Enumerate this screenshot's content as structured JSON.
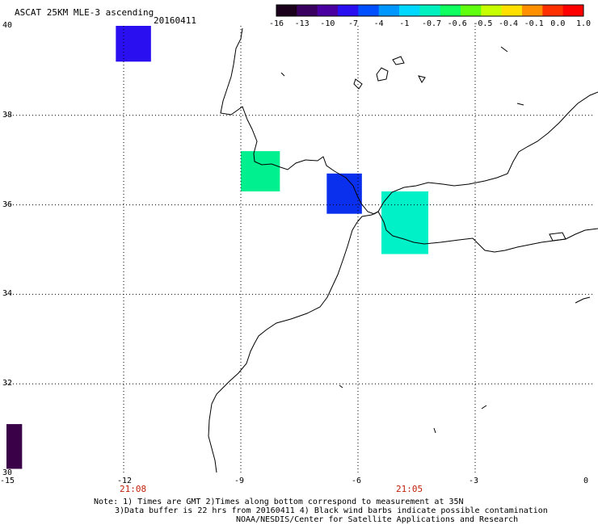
{
  "header": {
    "title": "ASCAT 25KM MLE-3 ascending",
    "date": "20160411"
  },
  "colorbar": {
    "labels": [
      "-16",
      "-13",
      "-10",
      "-7",
      "-4",
      "-1",
      "-0.7",
      "-0.6",
      "-0.5",
      "-0.4",
      "-0.1",
      "0.0",
      "1.0"
    ],
    "colors": [
      "#1a001a",
      "#3a0060",
      "#4a00a0",
      "#2a10f0",
      "#0050ff",
      "#0098ff",
      "#00d8ff",
      "#00f0c0",
      "#10ff60",
      "#60ff10",
      "#c8ff00",
      "#ffe000",
      "#ff9000",
      "#ff3000",
      "#ff0000"
    ]
  },
  "axes": {
    "lat_labels": [
      "40",
      "38",
      "36",
      "34",
      "32",
      "30"
    ],
    "lon_labels": [
      "-15",
      "-12",
      "-9",
      "-6",
      "-3",
      "0"
    ]
  },
  "times": {
    "left": "21:08",
    "right": "21:05"
  },
  "notes": {
    "line1": "Note: 1) Times are GMT 2)Times along bottom correspond to measurement at 35N",
    "line2": "3)Data buffer is 22 hrs from 20160411 4) Black wind barbs indicate possible contamination",
    "line3": "NOAA/NESDIS/Center for Satellite Applications and Research"
  },
  "data_cells": [
    {
      "lon_min": -12.2,
      "lon_max": -11.3,
      "lat_min": 39.2,
      "lat_max": 40.0,
      "color": "#2a10f0"
    },
    {
      "lon_min": -9.0,
      "lon_max": -8.0,
      "lat_min": 36.3,
      "lat_max": 37.2,
      "color": "#00f090"
    },
    {
      "lon_min": -6.8,
      "lon_max": -5.9,
      "lat_min": 35.8,
      "lat_max": 36.7,
      "color": "#0a30ee"
    },
    {
      "lon_min": -5.4,
      "lon_max": -4.2,
      "lat_min": 34.9,
      "lat_max": 36.3,
      "color": "#00f0c8"
    },
    {
      "lon_min": -15.0,
      "lon_max": -14.6,
      "lat_min": 30.1,
      "lat_max": 31.1,
      "color": "#3a0048"
    }
  ]
}
